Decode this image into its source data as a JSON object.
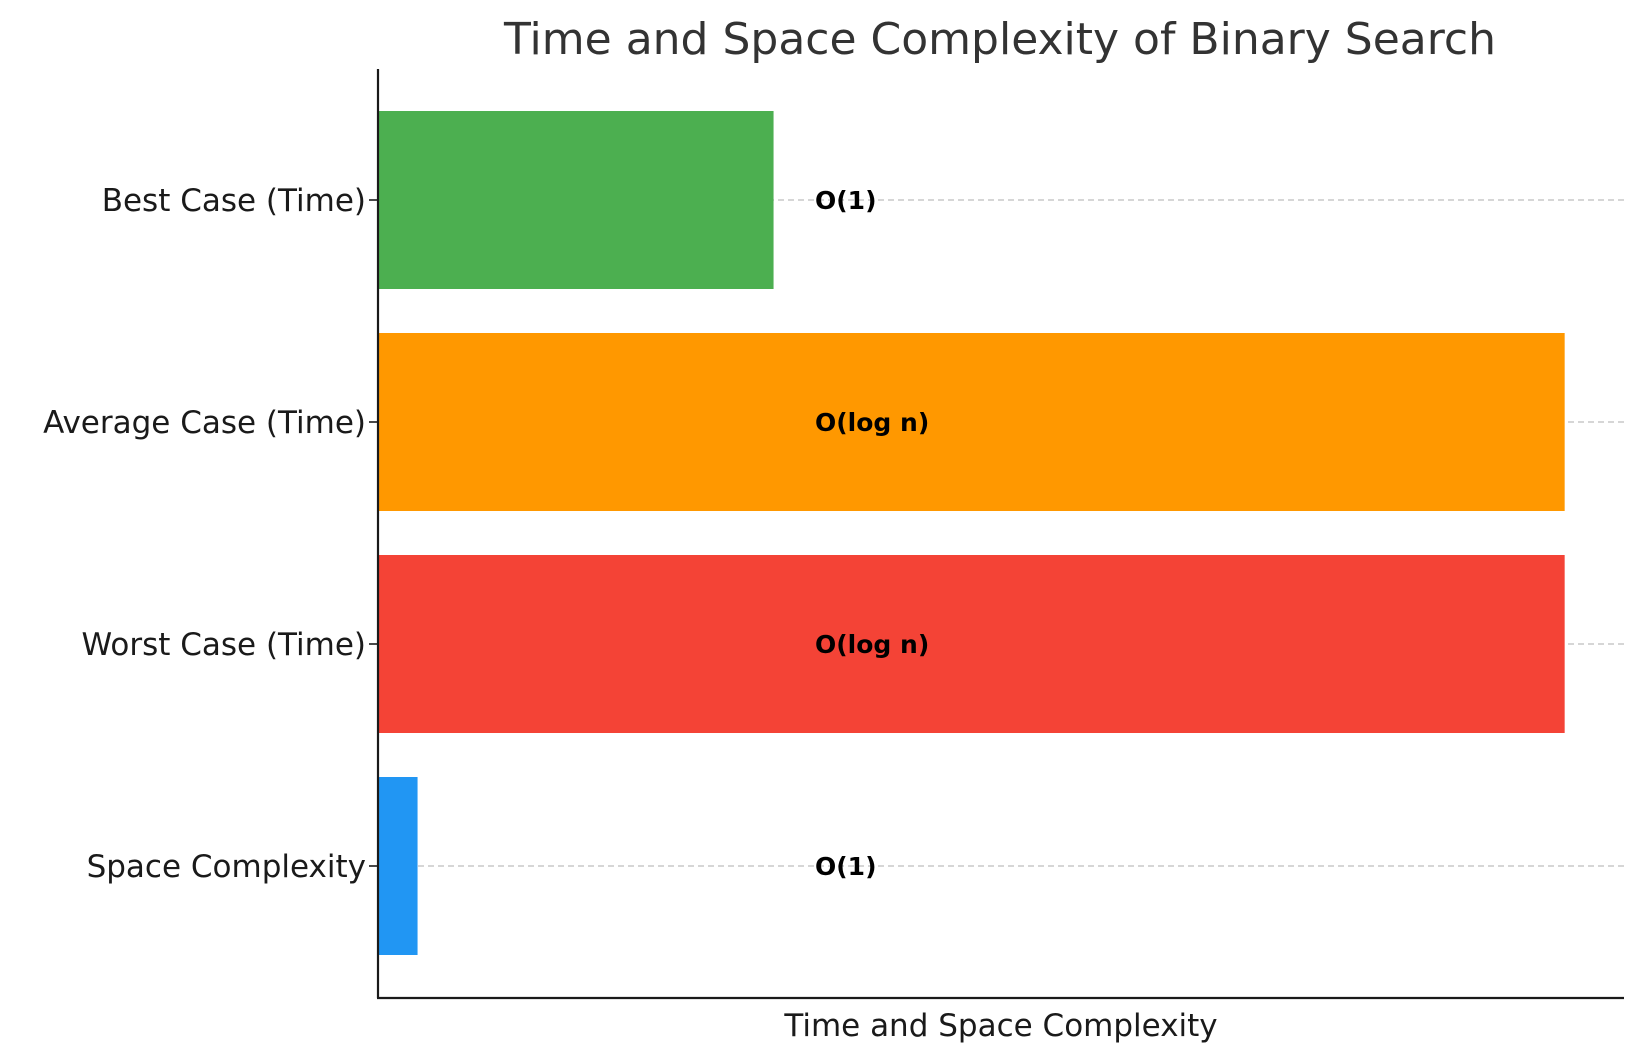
{
  "chart_data": {
    "type": "bar",
    "orientation": "horizontal",
    "title": "Time and Space Complexity of Binary Search",
    "xlabel": "Time and Space Complexity",
    "ylabel": "",
    "categories": [
      "Best Case (Time)",
      "Average Case (Time)",
      "Worst Case (Time)",
      "Space Complexity"
    ],
    "values": [
      1,
      3,
      3,
      0.1
    ],
    "labels": [
      "O(1)",
      "O(log n)",
      "O(log n)",
      "O(1)"
    ],
    "colors": [
      "#4caf50",
      "#ff9800",
      "#f44336",
      "#2196f3"
    ],
    "xlim": [
      0,
      3.15
    ],
    "grid": true,
    "x_ticks_visible": false
  }
}
